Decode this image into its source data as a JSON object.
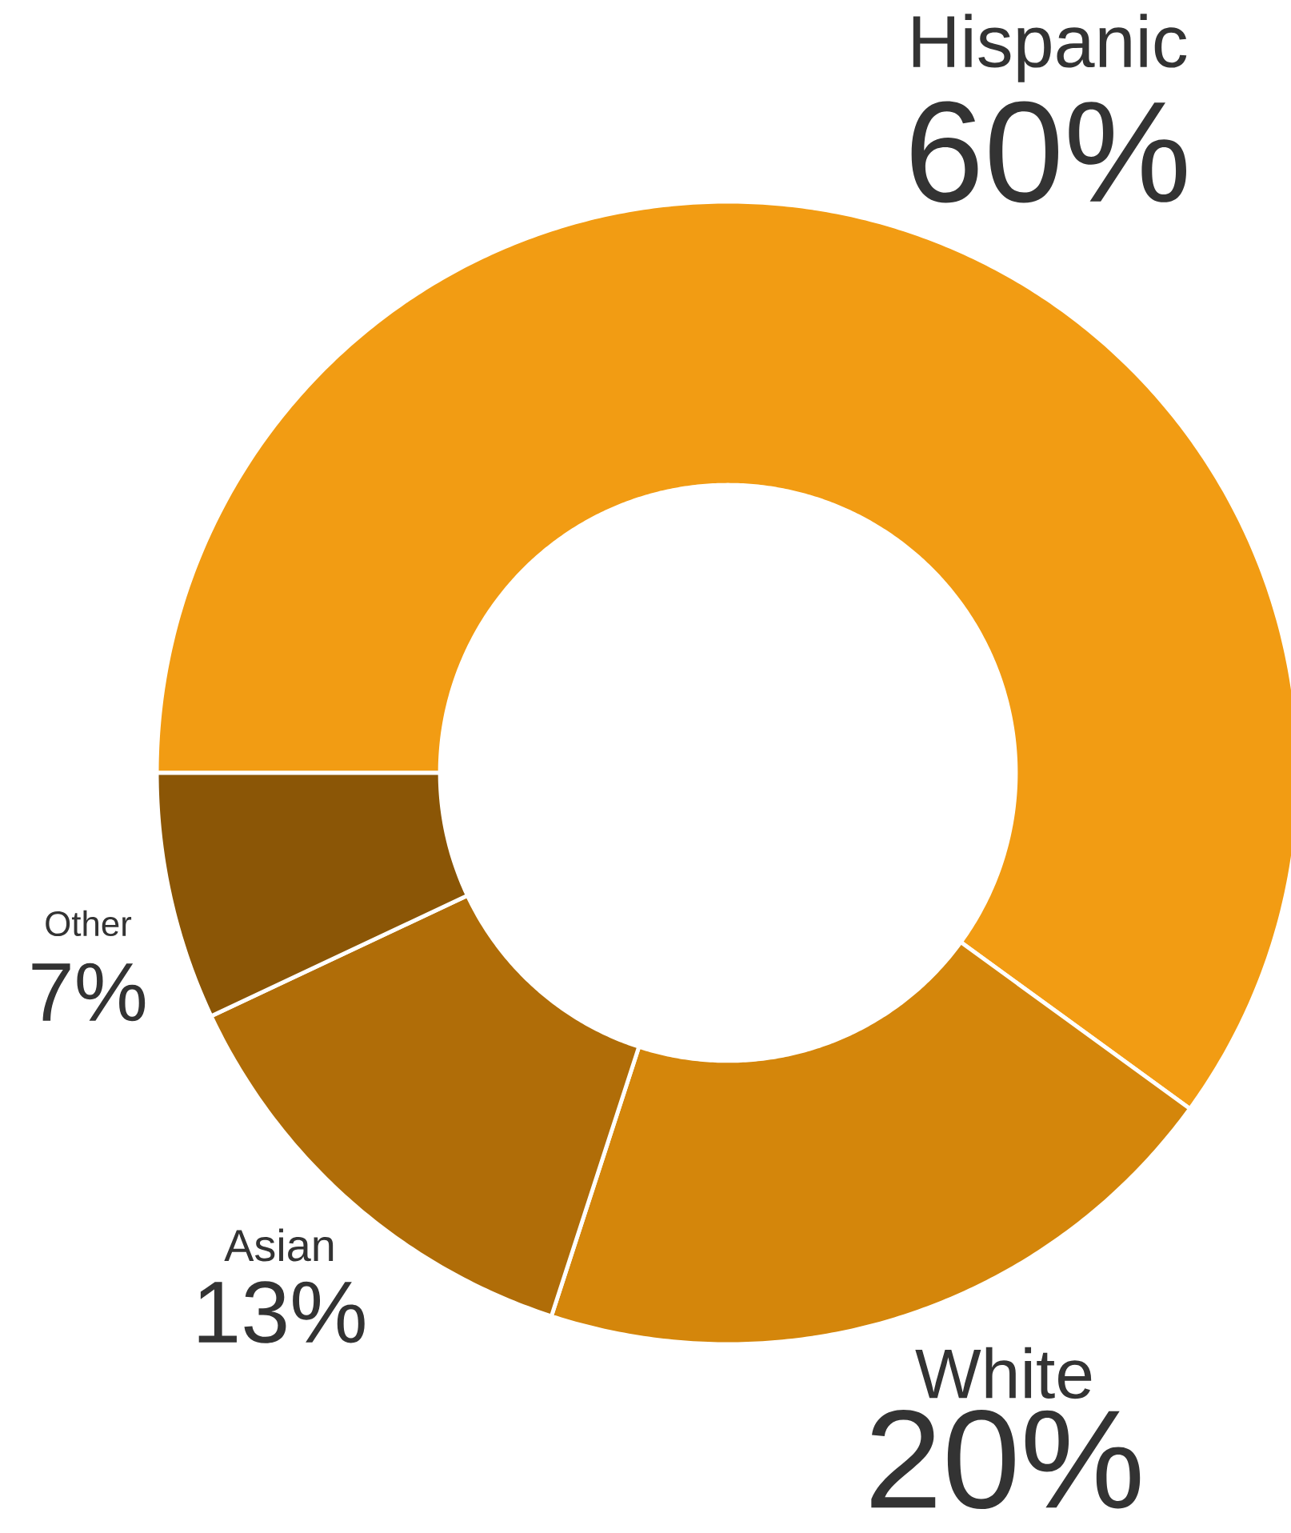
{
  "chart_data": {
    "type": "donut",
    "categories": [
      "Hispanic",
      "White",
      "Asian",
      "Other"
    ],
    "values": [
      60,
      20,
      13,
      7
    ],
    "value_labels": [
      "60%",
      "20%",
      "13%",
      "7%"
    ],
    "colors": [
      "#f29c13",
      "#d4860b",
      "#b06d08",
      "#8b5606"
    ]
  }
}
